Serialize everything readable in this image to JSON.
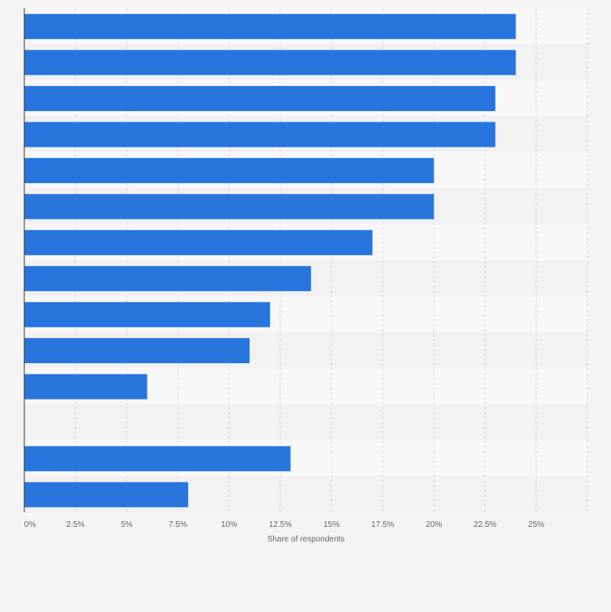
{
  "colors": {
    "bar": "#2875dd",
    "stripe_light": "#f8f8f8",
    "stripe_dark": "#f2f2f2",
    "grid": "#d6d6d6",
    "axis": "#333333",
    "tick_text": "#666666",
    "page_background": "#f4f4f4"
  },
  "chart_data": {
    "type": "bar",
    "orientation": "horizontal",
    "title": "",
    "xlabel": "Share of respondents",
    "ylabel": "",
    "xlim": [
      0,
      27.5
    ],
    "xticks": [
      0,
      2.5,
      5,
      7.5,
      10,
      12.5,
      15,
      17.5,
      20,
      22.5,
      25
    ],
    "xtick_labels": [
      "0%",
      "2.5%",
      "5%",
      "7.5%",
      "10%",
      "12.5%",
      "15%",
      "17.5%",
      "20%",
      "22.5%",
      "25%"
    ],
    "grid": true,
    "category_labels_visible": false,
    "series": [
      {
        "name": "Share of respondents",
        "values": [
          24,
          24,
          23,
          23,
          20,
          20,
          17,
          14,
          12,
          11,
          6,
          0,
          13,
          8
        ]
      }
    ]
  }
}
